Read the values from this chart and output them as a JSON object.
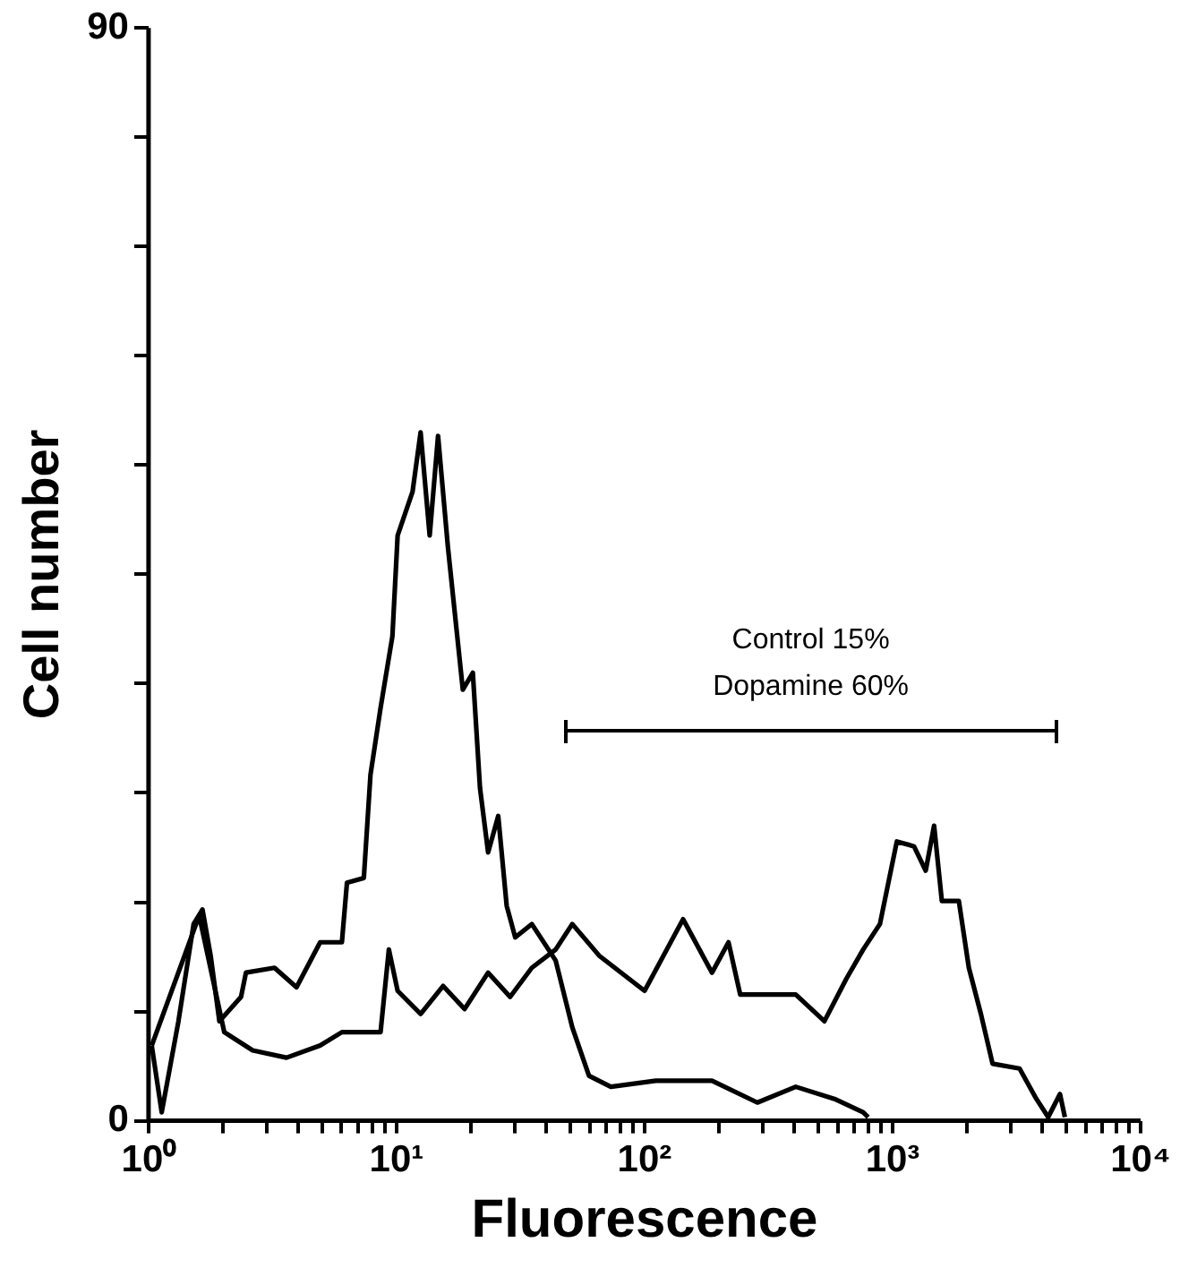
{
  "chart_data": {
    "type": "line",
    "xlabel": "Fluorescence",
    "ylabel": "Cell number",
    "log": "x",
    "grid": false,
    "legend": false,
    "marker": "none",
    "line_style": "solid",
    "xlim": [
      1,
      10000
    ],
    "xticks": [
      {
        "value": 1,
        "label": "10⁰"
      },
      {
        "value": 2,
        "label": null
      },
      {
        "value": 3,
        "label": null
      },
      {
        "value": 4,
        "label": null
      },
      {
        "value": 5,
        "label": null
      },
      {
        "value": 6,
        "label": null
      },
      {
        "value": 7,
        "label": null
      },
      {
        "value": 8,
        "label": null
      },
      {
        "value": 9,
        "label": null
      },
      {
        "value": 10,
        "label": "10¹"
      },
      {
        "value": 20,
        "label": null
      },
      {
        "value": 30,
        "label": null
      },
      {
        "value": 40,
        "label": null
      },
      {
        "value": 50,
        "label": null
      },
      {
        "value": 60,
        "label": null
      },
      {
        "value": 70,
        "label": null
      },
      {
        "value": 80,
        "label": null
      },
      {
        "value": 90,
        "label": null
      },
      {
        "value": 100,
        "label": "10²"
      },
      {
        "value": 200,
        "label": null
      },
      {
        "value": 300,
        "label": null
      },
      {
        "value": 400,
        "label": null
      },
      {
        "value": 500,
        "label": null
      },
      {
        "value": 600,
        "label": null
      },
      {
        "value": 700,
        "label": null
      },
      {
        "value": 800,
        "label": null
      },
      {
        "value": 900,
        "label": null
      },
      {
        "value": 1000,
        "label": "10³"
      },
      {
        "value": 2000,
        "label": null
      },
      {
        "value": 3000,
        "label": null
      },
      {
        "value": 4000,
        "label": null
      },
      {
        "value": 5000,
        "label": null
      },
      {
        "value": 6000,
        "label": null
      },
      {
        "value": 7000,
        "label": null
      },
      {
        "value": 8000,
        "label": null
      },
      {
        "value": 9000,
        "label": null
      },
      {
        "value": 10000,
        "label": "10⁴"
      }
    ],
    "ylim": [
      0,
      90
    ],
    "yticks": [
      0,
      {
        "value": 9,
        "label": null
      },
      {
        "value": 18,
        "label": null
      },
      {
        "value": 27,
        "label": null
      },
      {
        "value": 36,
        "label": null
      },
      {
        "value": 45,
        "label": null
      },
      {
        "value": 54,
        "label": null
      },
      {
        "value": 63,
        "label": null
      },
      {
        "value": 72,
        "label": null
      },
      {
        "value": 81,
        "label": null
      },
      90
    ],
    "annotations": [
      "Control 15%",
      "Dopamine 60%"
    ],
    "series": [
      {
        "color": "#000000",
        "x": [
          1.03,
          1.13,
          1.32,
          1.52,
          1.65,
          1.78,
          1.93,
          2.36,
          2.47,
          3.22,
          3.95,
          4.92,
          6.02,
          6.31,
          7.38,
          7.85,
          8.62,
          9.62,
          10.1,
          11.6,
          12.5,
          13.6,
          14.7,
          16.1,
          18.5,
          20.3,
          21.7,
          23.4,
          25.7,
          27.8,
          30.1,
          35.1,
          43.8,
          51.1,
          59.7,
          73.1,
          111,
          187,
          285,
          407,
          583,
          761,
          797
        ],
        "values": [
          6.2,
          0.7,
          8.2,
          16.2,
          17.4,
          13.6,
          8.2,
          10.2,
          12.2,
          12.6,
          11.0,
          14.7,
          14.7,
          19.6,
          20.0,
          28.5,
          34.0,
          39.9,
          48.2,
          51.8,
          56.7,
          48.2,
          56.4,
          47.3,
          35.5,
          36.9,
          27.4,
          22.1,
          25.1,
          17.7,
          15.1,
          16.2,
          13.2,
          7.7,
          3.7,
          2.8,
          3.3,
          3.3,
          1.5,
          2.8,
          1.8,
          0.7,
          0.3
        ]
      },
      {
        "color": "#000000",
        "x": [
          1.03,
          1.6,
          2.02,
          2.63,
          3.6,
          4.92,
          6.02,
          8.62,
          9.31,
          10.1,
          12.5,
          15.4,
          18.8,
          23.4,
          28.7,
          35.1,
          43.8,
          51.1,
          65.6,
          100,
          143,
          187,
          218,
          243,
          407,
          531,
          651,
          761,
          889,
          1040,
          1220,
          1360,
          1470,
          1580,
          1850,
          2030,
          2270,
          2530,
          3250,
          3800,
          4240,
          4730,
          4950
        ],
        "values": [
          6.2,
          16.9,
          7.3,
          5.8,
          5.2,
          6.2,
          7.3,
          7.3,
          14.1,
          10.7,
          8.8,
          11.1,
          9.2,
          12.2,
          10.2,
          12.6,
          14.1,
          16.2,
          13.6,
          10.7,
          16.6,
          12.2,
          14.7,
          10.4,
          10.4,
          8.2,
          11.7,
          14.1,
          16.2,
          23.0,
          22.6,
          20.6,
          24.3,
          18.1,
          18.1,
          12.6,
          8.8,
          4.7,
          4.3,
          1.8,
          0.3,
          2.2,
          0.3
        ]
      }
    ]
  }
}
